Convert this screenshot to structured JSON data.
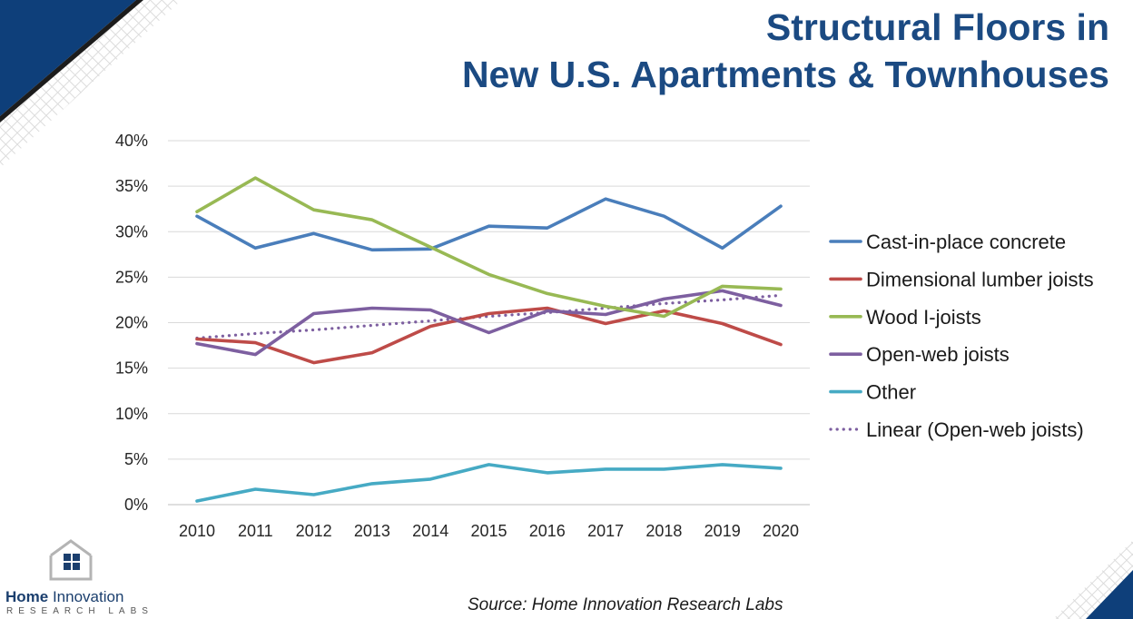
{
  "title_lines": [
    "Structural Floors in",
    "New U.S. Apartments & Townhouses"
  ],
  "source": "Source:  Home Innovation Research Labs",
  "logo": {
    "name_bold": "Home",
    "name_light": " Innovation",
    "sub": "RESEARCH LABS",
    "icon": "house-window-icon"
  },
  "colors": {
    "title": "#1b4a82",
    "brand_dark": "#0e3f7a"
  },
  "chart_data": {
    "type": "line",
    "title": "",
    "xlabel": "",
    "ylabel": "",
    "x": [
      2010,
      2011,
      2012,
      2013,
      2014,
      2015,
      2016,
      2017,
      2018,
      2019,
      2020
    ],
    "ylim": [
      0,
      40
    ],
    "y_ticks": [
      "0%",
      "5%",
      "10%",
      "15%",
      "20%",
      "25%",
      "30%",
      "35%",
      "40%"
    ],
    "grid": true,
    "legend_position": "right",
    "series": [
      {
        "name": "Cast-in-place concrete",
        "color": "#4a7ebb",
        "style": "solid",
        "values": [
          31.7,
          28.2,
          29.8,
          28.0,
          28.1,
          30.6,
          30.4,
          33.6,
          31.7,
          28.2,
          32.8
        ]
      },
      {
        "name": "Dimensional lumber joists",
        "color": "#be4b48",
        "style": "solid",
        "values": [
          18.2,
          17.8,
          15.6,
          16.7,
          19.6,
          21.0,
          21.6,
          19.9,
          21.3,
          19.9,
          17.6
        ]
      },
      {
        "name": "Wood I-joists",
        "color": "#98b954",
        "style": "solid",
        "values": [
          32.2,
          35.9,
          32.4,
          31.3,
          28.3,
          25.3,
          23.2,
          21.8,
          20.7,
          24.0,
          23.7
        ]
      },
      {
        "name": "Open-web joists",
        "color": "#7d5fa0",
        "style": "solid",
        "values": [
          17.7,
          16.5,
          21.0,
          21.6,
          21.4,
          18.9,
          21.3,
          20.9,
          22.6,
          23.5,
          21.9
        ]
      },
      {
        "name": "Other",
        "color": "#46aac4",
        "style": "solid",
        "values": [
          0.4,
          1.7,
          1.1,
          2.3,
          2.8,
          4.4,
          3.5,
          3.9,
          3.9,
          4.4,
          4.0
        ]
      },
      {
        "name": "Linear (Open-web joists)",
        "color": "#7d5fa0",
        "style": "dotted",
        "values": [
          18.3,
          18.8,
          19.2,
          19.7,
          20.2,
          20.7,
          21.1,
          21.6,
          22.1,
          22.5,
          23.0
        ]
      }
    ]
  }
}
